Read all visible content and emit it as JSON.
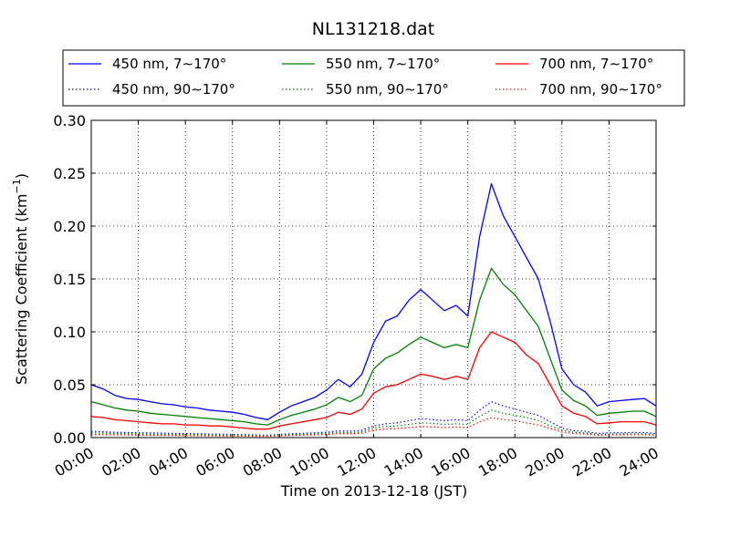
{
  "chart_data": {
    "type": "line",
    "title": "NL131218.dat",
    "xlabel": "Time on 2013-12-18 (JST)",
    "ylabel_main": "Scattering Coefficient (km",
    "ylabel_sup": "−1",
    "ylabel_close": ")",
    "xlim": [
      0,
      24
    ],
    "ylim": [
      0,
      0.3
    ],
    "grid": true,
    "legend": "top, above plot, 3 columns",
    "x_ticks": [
      0,
      2,
      4,
      6,
      8,
      10,
      12,
      14,
      16,
      18,
      20,
      22,
      24
    ],
    "x_tick_labels": [
      "00:00",
      "02:00",
      "04:00",
      "06:00",
      "08:00",
      "10:00",
      "12:00",
      "14:00",
      "16:00",
      "18:00",
      "20:00",
      "22:00",
      "24:00"
    ],
    "y_ticks": [
      0,
      0.05,
      0.1,
      0.15,
      0.2,
      0.25,
      0.3
    ],
    "y_tick_labels": [
      "0.00",
      "0.05",
      "0.10",
      "0.15",
      "0.20",
      "0.25",
      "0.30"
    ],
    "x_hours": [
      0,
      0.5,
      1,
      1.5,
      2,
      2.5,
      3,
      3.5,
      4,
      4.5,
      5,
      5.5,
      6,
      6.5,
      7,
      7.5,
      8,
      8.5,
      9,
      9.5,
      10,
      10.5,
      11,
      11.5,
      12,
      12.5,
      13,
      13.5,
      14,
      14.5,
      15,
      15.5,
      16,
      16.5,
      17,
      17.5,
      18,
      18.5,
      19,
      19.5,
      20,
      20.5,
      21,
      21.5,
      22,
      22.5,
      23,
      23.5,
      24
    ],
    "series": [
      {
        "name": "450 nm, 7∼170°",
        "color": "#0000ff",
        "style": "solid",
        "values": [
          0.05,
          0.046,
          0.04,
          0.037,
          0.036,
          0.034,
          0.032,
          0.031,
          0.029,
          0.028,
          0.026,
          0.025,
          0.024,
          0.022,
          0.019,
          0.017,
          0.024,
          0.03,
          0.034,
          0.038,
          0.045,
          0.055,
          0.048,
          0.06,
          0.09,
          0.11,
          0.115,
          0.13,
          0.14,
          0.13,
          0.12,
          0.125,
          0.115,
          0.19,
          0.24,
          0.21,
          0.19,
          0.17,
          0.15,
          0.11,
          0.065,
          0.05,
          0.043,
          0.03,
          0.034,
          0.035,
          0.036,
          0.037,
          0.03
        ]
      },
      {
        "name": "550 nm, 7∼170°",
        "color": "#008000",
        "style": "solid",
        "values": [
          0.034,
          0.031,
          0.028,
          0.026,
          0.025,
          0.023,
          0.022,
          0.021,
          0.02,
          0.019,
          0.018,
          0.017,
          0.016,
          0.015,
          0.013,
          0.012,
          0.017,
          0.021,
          0.024,
          0.027,
          0.031,
          0.038,
          0.034,
          0.04,
          0.065,
          0.075,
          0.08,
          0.088,
          0.095,
          0.09,
          0.085,
          0.088,
          0.085,
          0.13,
          0.16,
          0.145,
          0.135,
          0.12,
          0.105,
          0.075,
          0.045,
          0.035,
          0.03,
          0.021,
          0.023,
          0.024,
          0.025,
          0.025,
          0.02
        ]
      },
      {
        "name": "700 nm, 7∼170°",
        "color": "#ff0000",
        "style": "solid",
        "values": [
          0.02,
          0.019,
          0.017,
          0.016,
          0.015,
          0.014,
          0.013,
          0.013,
          0.012,
          0.012,
          0.011,
          0.011,
          0.01,
          0.009,
          0.008,
          0.008,
          0.011,
          0.013,
          0.015,
          0.017,
          0.019,
          0.024,
          0.022,
          0.027,
          0.042,
          0.048,
          0.05,
          0.055,
          0.06,
          0.058,
          0.055,
          0.058,
          0.055,
          0.085,
          0.1,
          0.095,
          0.09,
          0.078,
          0.07,
          0.05,
          0.03,
          0.023,
          0.02,
          0.013,
          0.014,
          0.015,
          0.015,
          0.015,
          0.012
        ]
      },
      {
        "name": "450 nm, 90∼170°",
        "color": "#0000ff",
        "style": "dotted",
        "values": [
          0.006,
          0.0055,
          0.005,
          0.0048,
          0.0046,
          0.0044,
          0.0042,
          0.004,
          0.0038,
          0.0036,
          0.0034,
          0.0032,
          0.003,
          0.0028,
          0.0025,
          0.0022,
          0.003,
          0.0036,
          0.004,
          0.0045,
          0.005,
          0.0065,
          0.006,
          0.007,
          0.011,
          0.013,
          0.014,
          0.016,
          0.018,
          0.017,
          0.016,
          0.017,
          0.016,
          0.026,
          0.034,
          0.03,
          0.027,
          0.024,
          0.021,
          0.015,
          0.009,
          0.0065,
          0.006,
          0.004,
          0.0045,
          0.0046,
          0.0047,
          0.0048,
          0.004
        ]
      },
      {
        "name": "550 nm, 90∼170°",
        "color": "#008000",
        "style": "dotted",
        "values": [
          0.0045,
          0.0042,
          0.0039,
          0.0037,
          0.0035,
          0.0033,
          0.0031,
          0.003,
          0.0029,
          0.0028,
          0.0026,
          0.0025,
          0.0024,
          0.0022,
          0.002,
          0.0018,
          0.0024,
          0.0028,
          0.0032,
          0.0036,
          0.004,
          0.005,
          0.0046,
          0.0055,
          0.009,
          0.0105,
          0.011,
          0.0125,
          0.014,
          0.0135,
          0.0125,
          0.013,
          0.0125,
          0.02,
          0.026,
          0.023,
          0.021,
          0.019,
          0.016,
          0.011,
          0.007,
          0.005,
          0.0045,
          0.003,
          0.0034,
          0.0035,
          0.0036,
          0.0036,
          0.003
        ]
      },
      {
        "name": "700 nm, 90∼170°",
        "color": "#ff0000",
        "style": "dotted",
        "values": [
          0.003,
          0.0028,
          0.0026,
          0.0025,
          0.0024,
          0.0022,
          0.0021,
          0.002,
          0.0019,
          0.0018,
          0.0017,
          0.0016,
          0.0015,
          0.0014,
          0.0013,
          0.0012,
          0.0016,
          0.002,
          0.0023,
          0.0026,
          0.003,
          0.0038,
          0.0035,
          0.0042,
          0.007,
          0.008,
          0.0085,
          0.0095,
          0.0105,
          0.01,
          0.0095,
          0.01,
          0.0095,
          0.015,
          0.019,
          0.017,
          0.016,
          0.014,
          0.012,
          0.0085,
          0.0052,
          0.0038,
          0.0034,
          0.0022,
          0.0025,
          0.0026,
          0.0027,
          0.0027,
          0.0022
        ]
      }
    ]
  }
}
